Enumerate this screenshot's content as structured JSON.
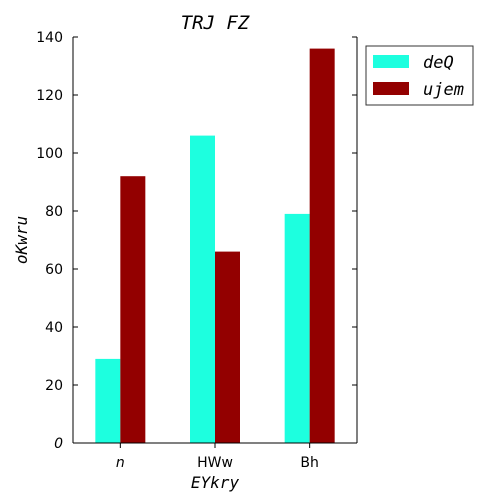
{
  "chart_data": {
    "type": "bar",
    "title": "TRJ FZ",
    "xlabel": "EYkry",
    "ylabel": "oKwru",
    "categories": [
      "n",
      "HWw",
      "Bh"
    ],
    "series": [
      {
        "name": "deQ",
        "values": [
          29,
          106,
          79
        ],
        "color": "#1dffdf"
      },
      {
        "name": "ujem",
        "values": [
          92,
          66,
          136
        ],
        "color": "#930000"
      }
    ],
    "ylim": [
      0,
      140
    ],
    "yticks": [
      0,
      20,
      40,
      60,
      80,
      100,
      120,
      140
    ],
    "grid": false,
    "legend_position": "top-right, outside plot"
  }
}
